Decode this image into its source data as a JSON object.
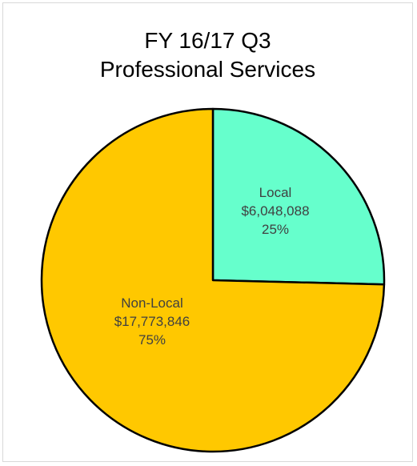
{
  "chart_data": {
    "type": "pie",
    "title_lines": [
      "FY 16/17 Q3",
      "Professional Services"
    ],
    "slices": [
      {
        "label": "Local",
        "value": 6048088,
        "value_text": "$6,048,088",
        "percent_text": "25%",
        "color": "#66FFCC"
      },
      {
        "label": "Non-Local",
        "value": 17773846,
        "value_text": "$17,773,846",
        "percent_text": "75%",
        "color": "#FFC800"
      }
    ],
    "legend": "none",
    "start": "top, clockwise"
  }
}
